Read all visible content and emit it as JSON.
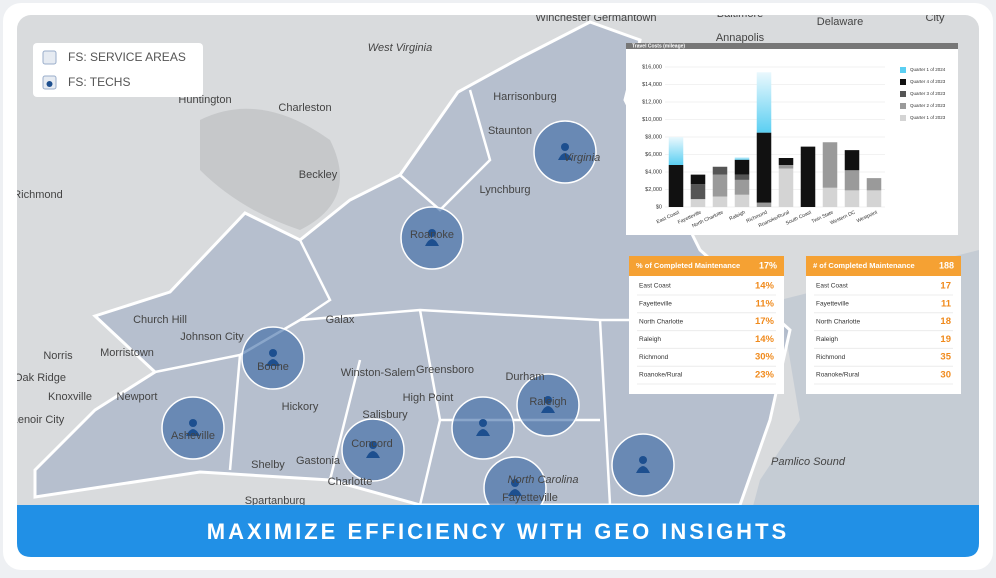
{
  "legend": {
    "items": [
      "FS: SERVICE AREAS",
      "FS: TECHS"
    ]
  },
  "map": {
    "labels": [
      "Winchester",
      "Germantown",
      "Baltimore",
      "Delaware",
      "City",
      "Annapolis",
      "West Virginia",
      "Huntington",
      "Charleston",
      "Harrisonburg",
      "Staunton",
      "Virginia",
      "Beckley",
      "Richmond",
      "Lynchburg",
      "Roanoke",
      "Galax",
      "Church Hill",
      "Johnson City",
      "Norris",
      "Morristown",
      "Oak Ridge",
      "Knoxville",
      "Newport",
      "Lenoir City",
      "Boone",
      "Asheville",
      "Hickory",
      "Winston-Salem",
      "Greensboro",
      "Durham",
      "Raleigh",
      "High Point",
      "Salisbury",
      "Concord",
      "Gastonia",
      "Shelby",
      "Charlotte",
      "Spartanburg",
      "North Carolina",
      "Fayetteville",
      "Pamlico Sound"
    ]
  },
  "chart_data": {
    "type": "bar",
    "stacked": true,
    "title": "Travel Costs (mileage)",
    "categories": [
      "East Coast",
      "Fayetteville",
      "North Charlotte",
      "Raleigh",
      "Richmond",
      "Roanoke/Rural",
      "South Coast",
      "Twin State",
      "Western DC",
      "Westpoint"
    ],
    "series": [
      {
        "name": "Quarter 1 of 2023",
        "color": "#d4d4d4",
        "values": [
          0,
          900,
          1200,
          1400,
          0,
          4400,
          0,
          2200,
          1900,
          1900
        ]
      },
      {
        "name": "Quarter 2 of 2023",
        "color": "#9a9a9a",
        "values": [
          0,
          0,
          2500,
          1700,
          500,
          400,
          0,
          5200,
          2300,
          1400
        ]
      },
      {
        "name": "Quarter 3 of 2023",
        "color": "#555555",
        "values": [
          0,
          1700,
          900,
          600,
          0,
          0,
          0,
          0,
          0,
          0
        ]
      },
      {
        "name": "Quarter 4 of 2023",
        "color": "#111111",
        "values": [
          4800,
          1100,
          0,
          1700,
          8000,
          800,
          6900,
          0,
          2300,
          0
        ]
      },
      {
        "name": "Quarter 1 of 2024",
        "color": "#5bcff2",
        "values": [
          3200,
          0,
          0,
          300,
          6900,
          0,
          0,
          0,
          0,
          0
        ]
      }
    ],
    "ylim": [
      0,
      16000
    ],
    "yticks": [
      {
        "value": 0,
        "label": "$0"
      },
      {
        "value": 2000,
        "label": "$2,000"
      },
      {
        "value": 4000,
        "label": "$4,000"
      },
      {
        "value": 6000,
        "label": "$6,000"
      },
      {
        "value": 8000,
        "label": "$8,000"
      },
      {
        "value": 10000,
        "label": "$10,000"
      },
      {
        "value": 12000,
        "label": "$12,000"
      },
      {
        "value": 14000,
        "label": "$14,000"
      },
      {
        "value": 16000,
        "label": "$16,000"
      }
    ],
    "grid": true
  },
  "tables": [
    {
      "header": [
        "% of Completed Maintenance",
        "17%"
      ],
      "rows": [
        [
          "East Coast",
          "14%"
        ],
        [
          "Fayetteville",
          "11%"
        ],
        [
          "North Charlotte",
          "17%"
        ],
        [
          "Raleigh",
          "14%"
        ],
        [
          "Richmond",
          "30%"
        ],
        [
          "Roanoke/Rural",
          "23%"
        ]
      ]
    },
    {
      "header": [
        "# of Completed Maintenance",
        "188"
      ],
      "rows": [
        [
          "East Coast",
          "17"
        ],
        [
          "Fayetteville",
          "11"
        ],
        [
          "North Charlotte",
          "18"
        ],
        [
          "Raleigh",
          "19"
        ],
        [
          "Richmond",
          "35"
        ],
        [
          "Roanoke/Rural",
          "30"
        ]
      ]
    }
  ],
  "banner": {
    "text": "MAXIMIZE EFFICIENCY WITH GEO INSIGHTS"
  }
}
